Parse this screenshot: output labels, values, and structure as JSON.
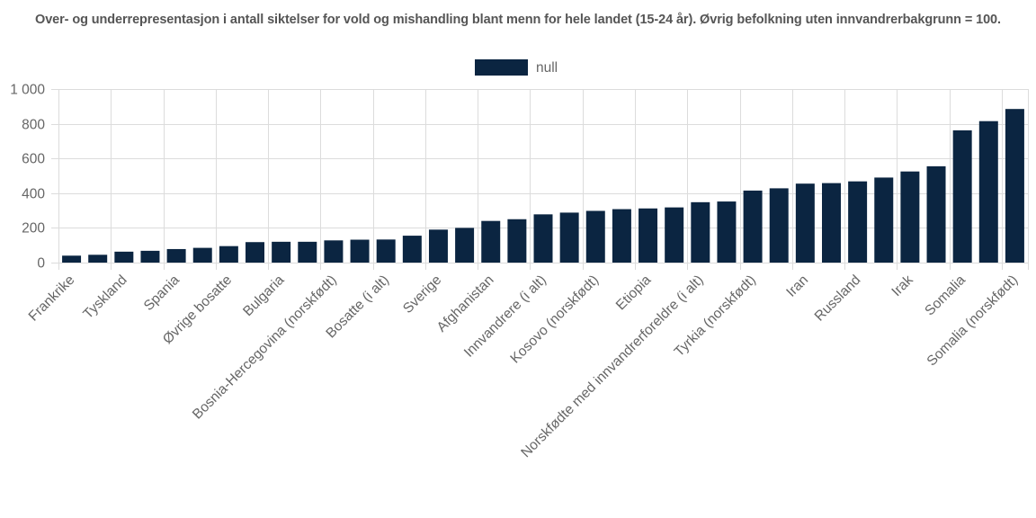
{
  "chart_data": {
    "type": "bar",
    "title": "Over- og underrepresentasjon i antall siktelser for vold og mishandling blant menn for hele landet (15-24 år). Øvrig befolkning uten innvandrerbakgrunn = 100.",
    "legend": {
      "position": "top",
      "entries": [
        "null"
      ]
    },
    "ylim": [
      0,
      1000
    ],
    "yticks": [
      0,
      200,
      400,
      600,
      800,
      1000
    ],
    "ytick_labels": [
      "0",
      "200",
      "400",
      "600",
      "800",
      "1 000"
    ],
    "grid": true,
    "bar_color": "#0b2541",
    "categories": [
      "Frankrike",
      "",
      "Tyskland",
      "",
      "Spania",
      "",
      "Øvrige bosatte",
      "",
      "Bulgaria",
      "",
      "Bosnia-Hercegovina (norskfødt)",
      "",
      "Bosatte (i alt)",
      "",
      "Sverige",
      "",
      "Afghanistan",
      "",
      "Innvandrere (i alt)",
      "",
      "Kosovo (norskfødt)",
      "",
      "Etiopia",
      "",
      "Norskfødte med innvandrerforeldre (i alt)",
      "",
      "Tyrkia (norskfødt)",
      "",
      "Iran",
      "",
      "Russland",
      "",
      "Irak",
      "",
      "Somalia",
      "",
      "Somalia (norskfødt)"
    ],
    "series": [
      {
        "name": "null",
        "values": [
          40,
          45,
          63,
          68,
          78,
          85,
          95,
          118,
          120,
          120,
          128,
          132,
          133,
          155,
          190,
          200,
          240,
          250,
          278,
          288,
          298,
          308,
          312,
          318,
          348,
          352,
          415,
          428,
          455,
          458,
          468,
          490,
          525,
          555,
          762,
          815,
          885
        ]
      }
    ]
  }
}
